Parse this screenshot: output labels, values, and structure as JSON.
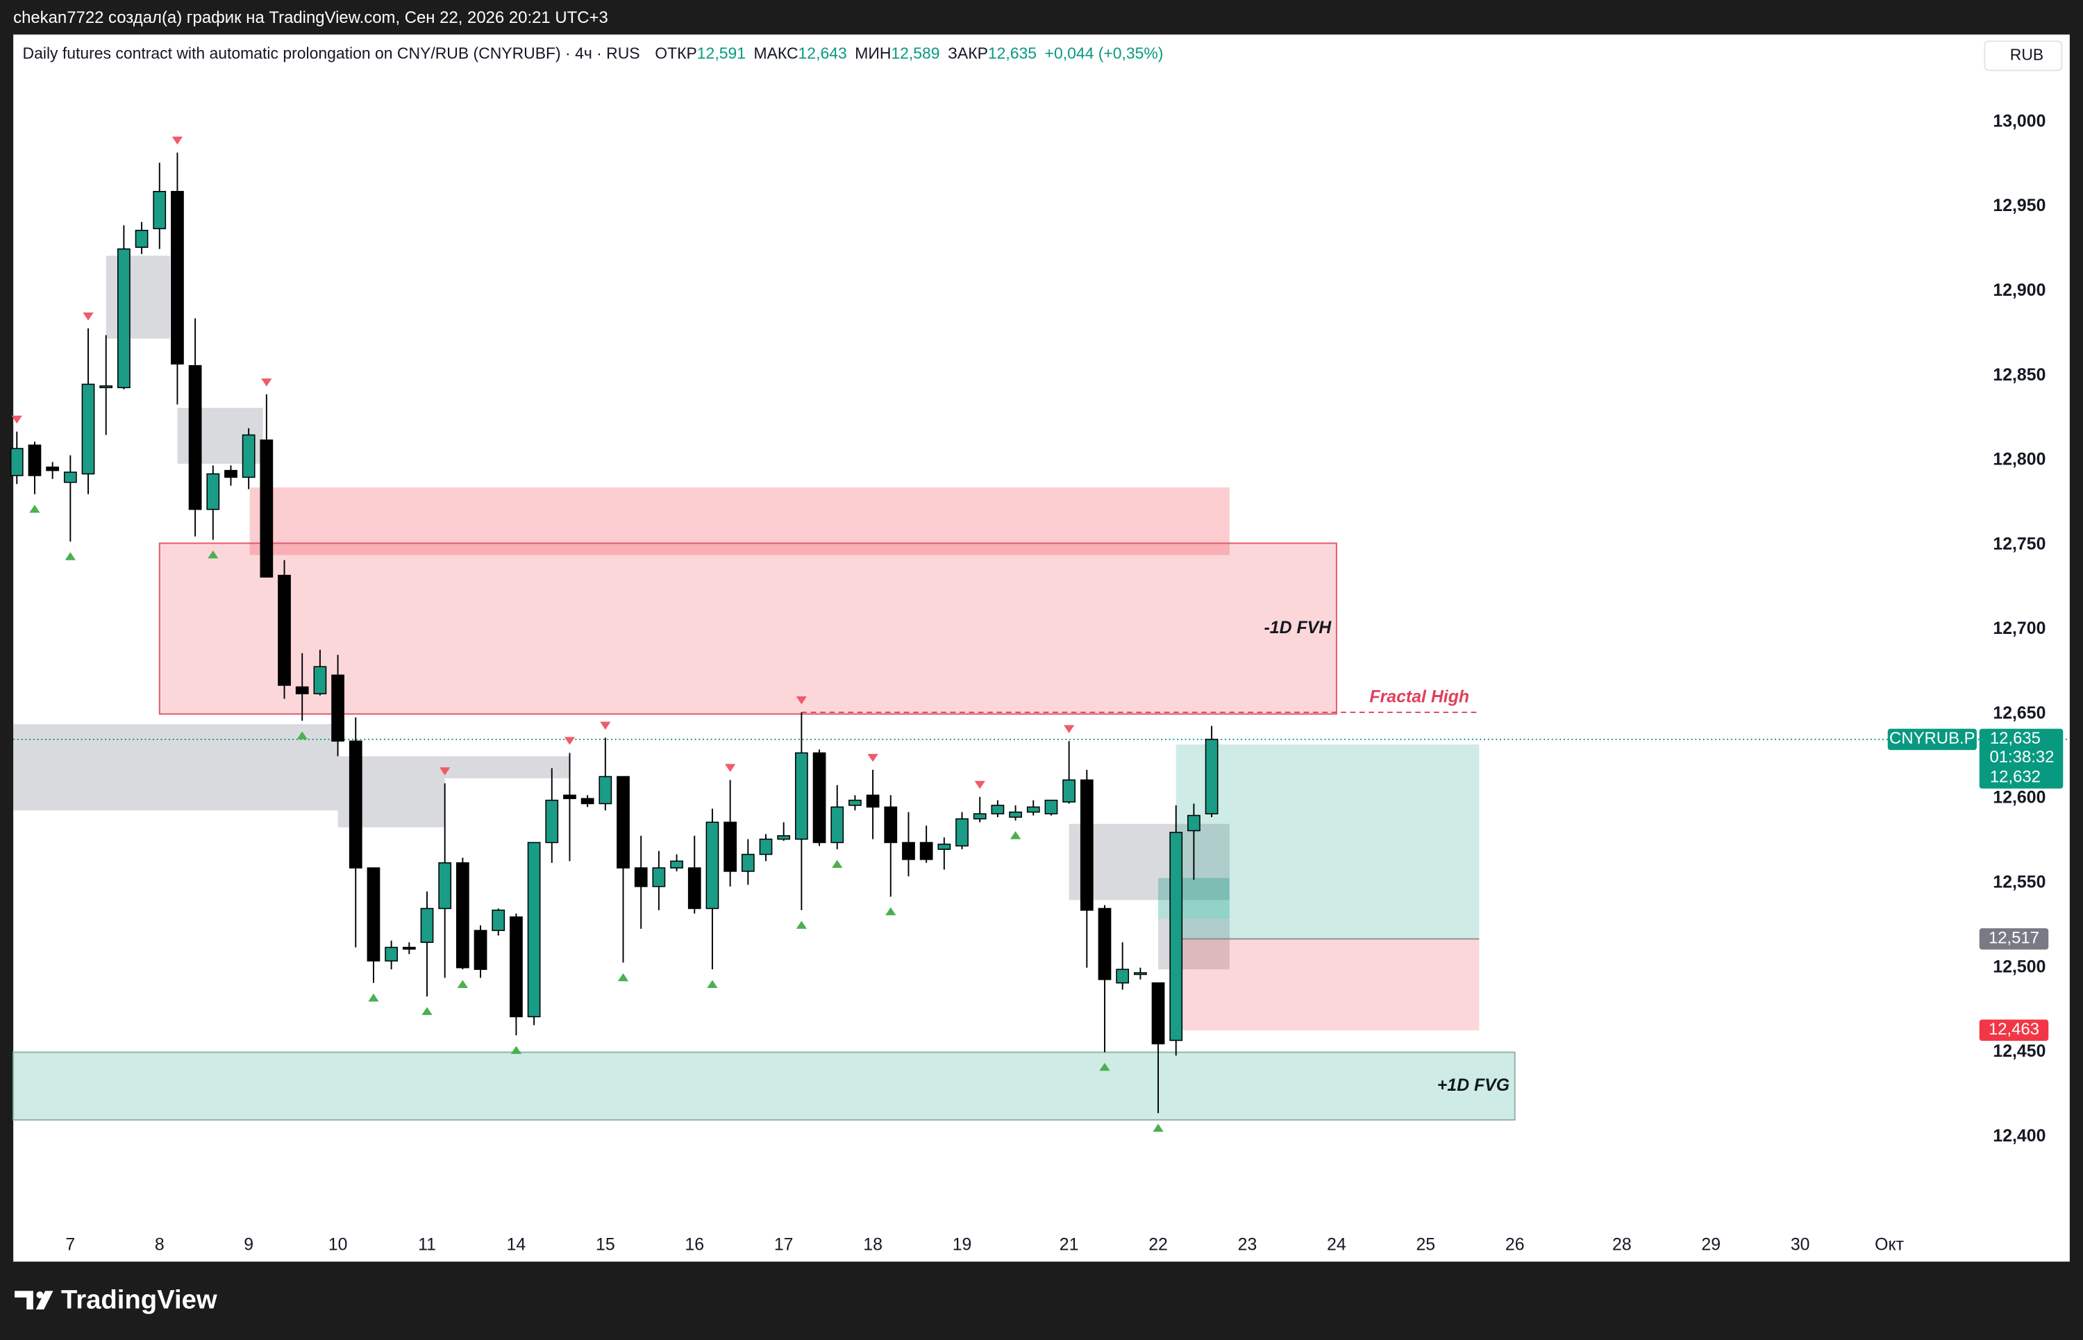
{
  "header": {
    "caption": "chekan7722 создал(а) график на TradingView.com, Сен 22, 2026 20:21 UTC+3"
  },
  "footer": {
    "brand": "TradingView"
  },
  "chart_data": {
    "type": "candlestick",
    "title": "Daily futures contract with automatic prolongation on CNY/RUB (CNYRUBF) · 4ч · RUS",
    "ohlc_legend": [
      {
        "label": "ОТКР",
        "value": "12,591"
      },
      {
        "label": "МАКС",
        "value": "12,643"
      },
      {
        "label": "МИН",
        "value": "12,589"
      },
      {
        "label": "ЗАКР",
        "value": "12,635"
      }
    ],
    "change": "+0,044 (+0,35%)",
    "currency": "RUB",
    "up_color": "#1a9c86",
    "down_color": "#000000",
    "wick_color": "#000000",
    "x": [
      0,
      1,
      2,
      3,
      4,
      5,
      6,
      7,
      8,
      9,
      10,
      11,
      12,
      13,
      14,
      15,
      16,
      17,
      18,
      19,
      20,
      21,
      22,
      23,
      24,
      25,
      26,
      27,
      28,
      29,
      30,
      31,
      32,
      33,
      34,
      35,
      36,
      37,
      38,
      39,
      40,
      41,
      42,
      43,
      44,
      45,
      46,
      47,
      48,
      49,
      50,
      51,
      52,
      53,
      54,
      55,
      56,
      57,
      58,
      59,
      60,
      61,
      62,
      63,
      64,
      65,
      66,
      67
    ],
    "open": [
      12.791,
      12.809,
      12.796,
      12.787,
      12.792,
      12.843,
      12.843,
      12.926,
      12.937,
      12.959,
      12.856,
      12.771,
      12.794,
      12.79,
      12.812,
      12.732,
      12.666,
      12.662,
      12.673,
      12.634,
      12.559,
      12.504,
      12.512,
      12.515,
      12.535,
      12.562,
      12.522,
      12.522,
      12.53,
      12.471,
      12.574,
      12.602,
      12.6,
      12.597,
      12.613,
      12.559,
      12.548,
      12.559,
      12.559,
      12.535,
      12.586,
      12.557,
      12.567,
      12.576,
      12.576,
      12.627,
      12.574,
      12.596,
      12.602,
      12.595,
      12.574,
      12.574,
      12.57,
      12.572,
      12.588,
      12.591,
      12.589,
      12.592,
      12.591,
      12.598,
      12.611,
      12.535,
      12.491,
      12.496,
      12.491,
      12.457,
      12.581,
      12.591
    ],
    "high": [
      12.817,
      12.811,
      12.799,
      12.803,
      12.878,
      12.874,
      12.939,
      12.941,
      12.976,
      12.982,
      12.884,
      12.797,
      12.797,
      12.819,
      12.839,
      12.741,
      12.686,
      12.688,
      12.685,
      12.648,
      12.559,
      12.516,
      12.515,
      12.545,
      12.609,
      12.565,
      12.525,
      12.535,
      12.532,
      12.574,
      12.618,
      12.627,
      12.602,
      12.636,
      12.613,
      12.578,
      12.569,
      12.567,
      12.578,
      12.594,
      12.611,
      12.576,
      12.579,
      12.586,
      12.651,
      12.629,
      12.608,
      12.602,
      12.617,
      12.602,
      12.592,
      12.584,
      12.577,
      12.592,
      12.601,
      12.599,
      12.596,
      12.599,
      12.599,
      12.634,
      12.617,
      12.537,
      12.515,
      12.5,
      12.491,
      12.596,
      12.597,
      12.643
    ],
    "low": [
      12.786,
      12.78,
      12.789,
      12.752,
      12.78,
      12.815,
      12.842,
      12.922,
      12.925,
      12.833,
      12.755,
      12.753,
      12.785,
      12.783,
      12.731,
      12.659,
      12.646,
      12.661,
      12.625,
      12.512,
      12.491,
      12.499,
      12.508,
      12.483,
      12.494,
      12.499,
      12.494,
      12.519,
      12.46,
      12.466,
      12.562,
      12.563,
      12.595,
      12.593,
      12.503,
      12.523,
      12.534,
      12.557,
      12.532,
      12.499,
      12.548,
      12.549,
      12.563,
      12.575,
      12.534,
      12.572,
      12.57,
      12.593,
      12.576,
      12.542,
      12.554,
      12.562,
      12.558,
      12.57,
      12.586,
      12.589,
      12.587,
      12.59,
      12.59,
      12.597,
      12.5,
      12.45,
      12.487,
      12.493,
      12.414,
      12.448,
      12.552,
      12.589
    ],
    "close": [
      12.807,
      12.791,
      12.794,
      12.793,
      12.845,
      12.844,
      12.925,
      12.936,
      12.959,
      12.857,
      12.771,
      12.792,
      12.79,
      12.815,
      12.731,
      12.667,
      12.662,
      12.678,
      12.634,
      12.559,
      12.504,
      12.512,
      12.511,
      12.535,
      12.562,
      12.5,
      12.499,
      12.534,
      12.471,
      12.574,
      12.599,
      12.6,
      12.597,
      12.613,
      12.559,
      12.548,
      12.559,
      12.563,
      12.535,
      12.586,
      12.557,
      12.567,
      12.576,
      12.578,
      12.627,
      12.574,
      12.595,
      12.599,
      12.595,
      12.574,
      12.564,
      12.564,
      12.573,
      12.588,
      12.591,
      12.596,
      12.592,
      12.595,
      12.599,
      12.611,
      12.534,
      12.493,
      12.499,
      12.497,
      12.455,
      12.58,
      12.59,
      12.635
    ],
    "xlim": [
      -0.2,
      109.9
    ],
    "ylim": [
      12.3458,
      13.0518
    ],
    "xticks": [
      {
        "value": 3,
        "label": "7"
      },
      {
        "value": 8,
        "label": "8"
      },
      {
        "value": 13,
        "label": "9"
      },
      {
        "value": 18,
        "label": "10"
      },
      {
        "value": 23,
        "label": "11"
      },
      {
        "value": 28,
        "label": "14"
      },
      {
        "value": 33,
        "label": "15"
      },
      {
        "value": 38,
        "label": "16"
      },
      {
        "value": 43,
        "label": "17"
      },
      {
        "value": 48,
        "label": "18"
      },
      {
        "value": 53,
        "label": "19"
      },
      {
        "value": 59,
        "label": "21"
      },
      {
        "value": 64,
        "label": "22"
      },
      {
        "value": 69,
        "label": "23"
      },
      {
        "value": 74,
        "label": "24"
      },
      {
        "value": 79,
        "label": "25"
      },
      {
        "value": 84,
        "label": "26"
      },
      {
        "value": 90,
        "label": "28"
      },
      {
        "value": 95,
        "label": "29"
      },
      {
        "value": 100,
        "label": "30"
      },
      {
        "value": 105,
        "label": "Окт"
      }
    ],
    "yticks": [
      {
        "value": 12.4,
        "label": "12,400"
      },
      {
        "value": 12.45,
        "label": "12,450"
      },
      {
        "value": 12.5,
        "label": "12,500"
      },
      {
        "value": 12.55,
        "label": "12,550"
      },
      {
        "value": 12.6,
        "label": "12,600"
      },
      {
        "value": 12.65,
        "label": "12,650"
      },
      {
        "value": 12.7,
        "label": "12,700"
      },
      {
        "value": 12.75,
        "label": "12,750"
      },
      {
        "value": 12.8,
        "label": "12,800"
      },
      {
        "value": 12.85,
        "label": "12,850"
      },
      {
        "value": 12.9,
        "label": "12,900"
      },
      {
        "value": 12.95,
        "label": "12,950"
      },
      {
        "value": 13.0,
        "label": "13,000"
      }
    ],
    "grid": false,
    "zones": [
      {
        "x": [
          5.0,
          8.6
        ],
        "y": [
          12.872,
          12.921
        ],
        "color": "rgba(160,163,170,0.4)"
      },
      {
        "x": [
          9.0,
          13.8
        ],
        "y": [
          12.798,
          12.831
        ],
        "color": "rgba(160,163,170,0.4)"
      },
      {
        "x": [
          -0.2,
          18.0
        ],
        "y": [
          12.593,
          12.644
        ],
        "color": "rgba(160,163,170,0.4)"
      },
      {
        "x": [
          18.0,
          24.0
        ],
        "y": [
          12.583,
          12.612
        ],
        "color": "rgba(160,163,170,0.4)"
      },
      {
        "x": [
          18.0,
          31.0
        ],
        "y": [
          12.612,
          12.625
        ],
        "color": "rgba(160,163,170,0.4)"
      },
      {
        "x": [
          59.0,
          68.0
        ],
        "y": [
          12.54,
          12.585
        ],
        "color": "rgba(160,163,170,0.4)"
      },
      {
        "x": [
          64.0,
          68.0
        ],
        "y": [
          12.499,
          12.529
        ],
        "color": "rgba(160,163,170,0.4)"
      },
      {
        "x": [
          64.0,
          68.0
        ],
        "y": [
          12.529,
          12.553
        ],
        "color": "rgba(8,153,129,0.3)"
      },
      {
        "x": [
          13.06,
          68.0
        ],
        "y": [
          12.744,
          12.784
        ],
        "color": "rgba(242,54,69,0.25)"
      },
      {
        "x": [
          8.0,
          74.0
        ],
        "y": [
          12.65,
          12.751
        ],
        "color": "rgba(242,54,69,0.2)",
        "border": "#e0566a",
        "label": "-1D FVH"
      },
      {
        "x": [
          -0.2,
          84.0
        ],
        "y": [
          12.41,
          12.45
        ],
        "color": "rgba(8,153,129,0.2)",
        "border": "#8fb3aa",
        "label": "+1D FVG"
      }
    ],
    "fractal_line": {
      "label": "Fractal High",
      "value": 12.651,
      "x": [
        44,
        82
      ],
      "color": "#e0405a"
    },
    "fractal_highs": [
      0,
      4,
      9,
      14,
      24,
      31,
      33,
      40,
      44,
      48,
      54,
      59
    ],
    "fractal_lows": [
      1,
      3,
      11,
      16,
      20,
      23,
      25,
      28,
      34,
      39,
      44,
      46,
      49,
      56,
      61,
      64
    ],
    "fractal_high_color": "#f05a6a",
    "fractal_low_color": "#4caf50",
    "position": {
      "x": [
        65,
        82
      ],
      "entry": {
        "value": 12.517,
        "label": "12,517"
      },
      "target": {
        "value": 12.632,
        "label": "12,632"
      },
      "stop": {
        "value": 12.463,
        "label": "12,463"
      }
    },
    "last_price": {
      "symbol": "CNYRUB.P",
      "value": 12.635,
      "label": "12,635",
      "countdown": "01:38:32",
      "color": "#089981"
    }
  }
}
